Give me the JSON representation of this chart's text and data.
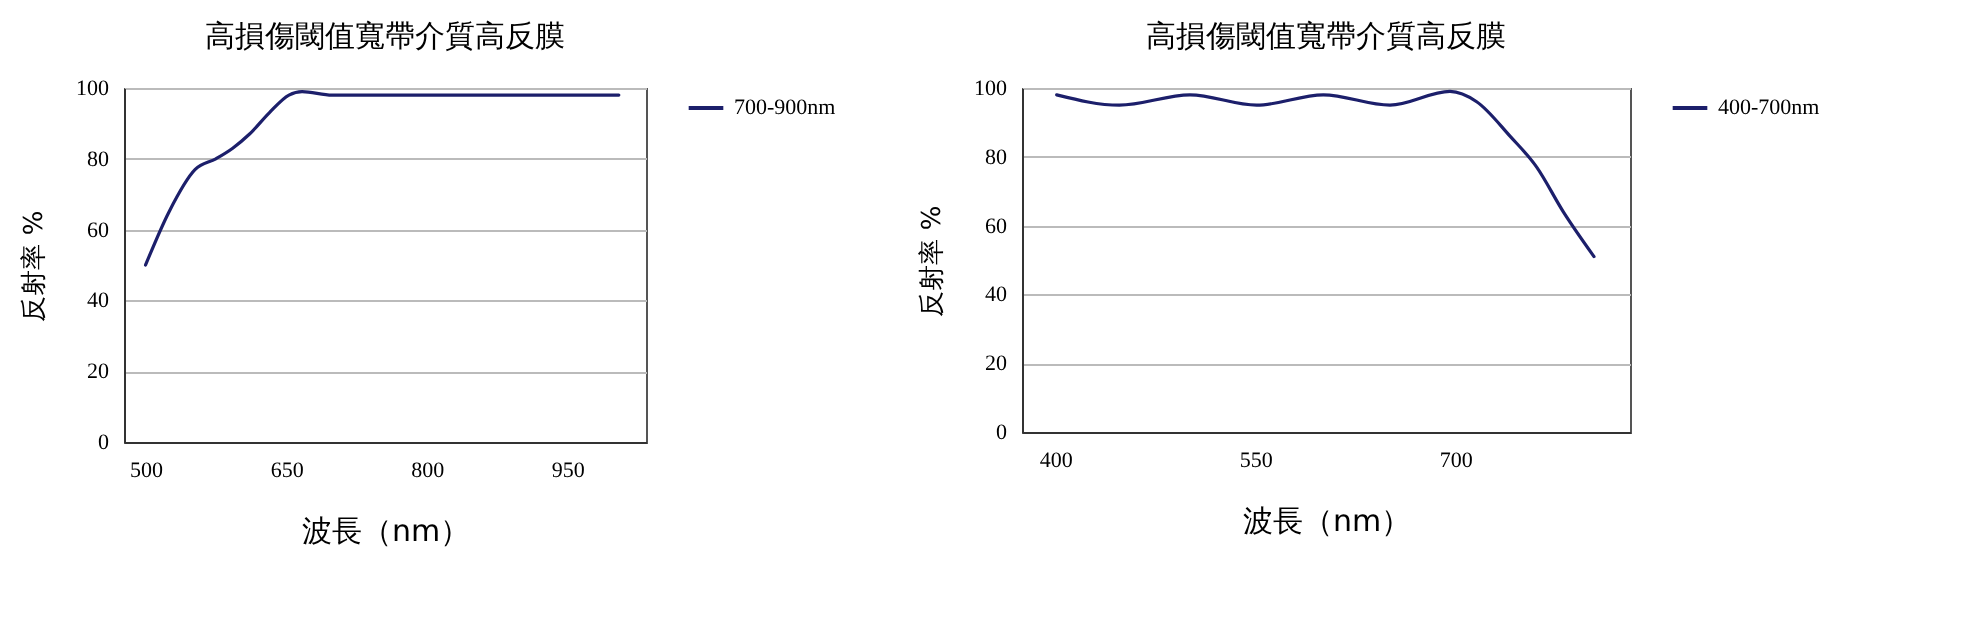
{
  "chart_data": [
    {
      "type": "line",
      "title": "高損傷閾值寬帶介質高反膜",
      "xlabel": "波長（nm）",
      "ylabel": "反射率 %",
      "x": [
        500,
        525,
        553,
        575,
        593,
        611,
        632,
        653,
        667,
        699,
        800,
        900,
        1005
      ],
      "series": [
        {
          "name": "700-900nm",
          "color": "#1c1f6b",
          "values": [
            50,
            65,
            77,
            80,
            83,
            87,
            93,
            98,
            99,
            98,
            98,
            98,
            98
          ]
        }
      ],
      "xlim": [
        477,
        1034
      ],
      "xticks": [
        500,
        650,
        800,
        950
      ],
      "ylim": [
        0,
        100
      ],
      "yticks": [
        0,
        20,
        40,
        60,
        80,
        100
      ],
      "grid": "y",
      "legend": "right",
      "marker": "none"
    },
    {
      "type": "line",
      "title": "高損傷閾值寬帶介質高反膜",
      "xlabel": "波長（nm）",
      "ylabel": "反射率 %",
      "x": [
        401,
        448,
        501,
        551,
        601,
        651,
        696,
        716,
        741,
        761,
        781,
        804
      ],
      "series": [
        {
          "name": "400-700nm",
          "color": "#1c1f6b",
          "values": [
            98,
            95,
            98,
            95,
            98,
            95,
            99,
            96,
            86,
            77,
            64,
            51
          ]
        }
      ],
      "xlim": [
        375,
        831
      ],
      "xticks": [
        400,
        550,
        700
      ],
      "ylim": [
        0,
        100
      ],
      "yticks": [
        0,
        20,
        40,
        60,
        80,
        100
      ],
      "grid": "y",
      "legend": "right",
      "marker": "none"
    }
  ]
}
